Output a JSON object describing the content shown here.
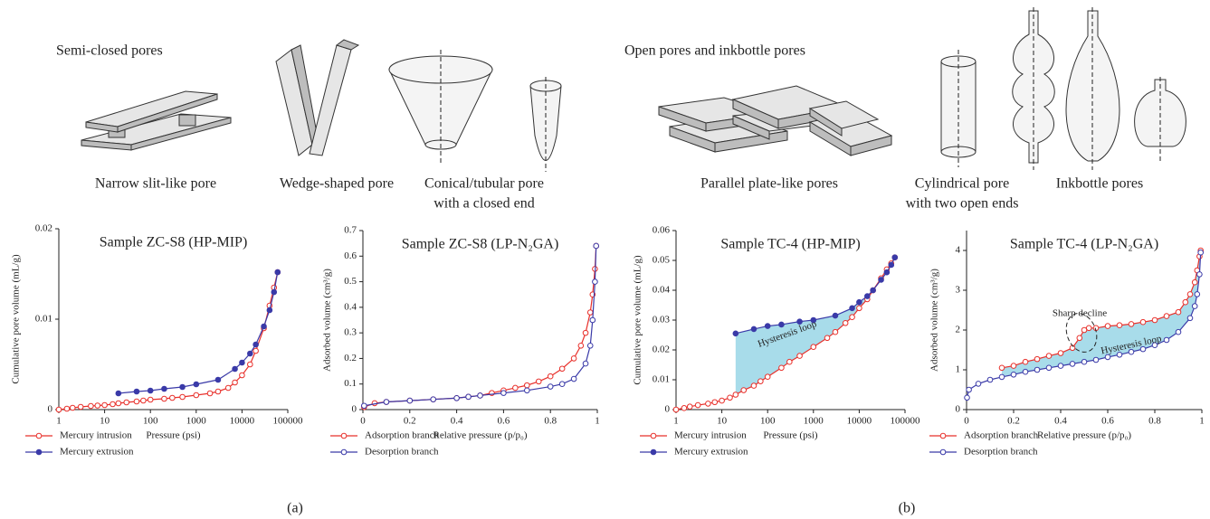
{
  "diagrams": {
    "left": {
      "title": "Semi-closed pores",
      "labels": [
        "Narrow slit-like pore",
        "Wedge-shaped pore",
        "Conical/tubular pore",
        "with a closed end"
      ]
    },
    "right": {
      "title": "Open pores and inkbottle pores",
      "labels": [
        "Parallel plate-like pores",
        "Cylindrical pore",
        "with two open ends",
        "Inkbottle pores"
      ]
    }
  },
  "panels": [
    "(a)",
    "(b)"
  ],
  "chart_data": [
    {
      "type": "line",
      "title": "Sample ZC-S8 (HP-MIP)",
      "x_label": "Pressure (psi)",
      "y_label": "Cumulative pore volume (mL/g)",
      "xscale": "log",
      "xlim": [
        1,
        100000
      ],
      "xticks": [
        1,
        10,
        100,
        1000,
        10000,
        100000
      ],
      "ylim": [
        0,
        0.02
      ],
      "yticks": [
        0,
        0.01,
        0.02
      ],
      "series": [
        {
          "name": "Mercury intrusion",
          "color": "#e8302b",
          "filled": false,
          "x": [
            1,
            1.5,
            2,
            3,
            5,
            7,
            10,
            15,
            20,
            30,
            50,
            70,
            100,
            200,
            300,
            500,
            1000,
            2000,
            3000,
            5000,
            7000,
            10000,
            15000,
            20000,
            30000,
            40000,
            50000,
            60000
          ],
          "values": [
            0,
            0.0001,
            0.0002,
            0.0003,
            0.0004,
            0.00045,
            0.0005,
            0.0006,
            0.0007,
            0.0008,
            0.0009,
            0.001,
            0.0011,
            0.0012,
            0.0013,
            0.0014,
            0.0016,
            0.0018,
            0.002,
            0.0024,
            0.003,
            0.0038,
            0.005,
            0.0065,
            0.009,
            0.0115,
            0.0135,
            0.0152
          ]
        },
        {
          "name": "Mercury extrusion",
          "color": "#3a3aa8",
          "filled": true,
          "x": [
            20,
            50,
            100,
            200,
            500,
            1000,
            3000,
            7000,
            10000,
            15000,
            20000,
            30000,
            40000,
            50000,
            60000
          ],
          "values": [
            0.0018,
            0.002,
            0.0021,
            0.0023,
            0.0025,
            0.0028,
            0.0033,
            0.0045,
            0.0052,
            0.0062,
            0.0072,
            0.0092,
            0.011,
            0.013,
            0.0152
          ]
        }
      ]
    },
    {
      "type": "line",
      "title": "Sample ZC-S8 (LP-N₂GA)",
      "x_label": "Relative pressure (p/p₀)",
      "y_label": "Adsorbed volume (cm³/g)",
      "xlim": [
        0,
        1
      ],
      "xticks": [
        0,
        0.2,
        0.4,
        0.6,
        0.8,
        1
      ],
      "ylim": [
        0,
        0.7
      ],
      "yticks": [
        0,
        0.1,
        0.2,
        0.3,
        0.4,
        0.5,
        0.6,
        0.7
      ],
      "series": [
        {
          "name": "Adsorption branch",
          "color": "#e8302b",
          "filled": false,
          "x": [
            0.005,
            0.05,
            0.1,
            0.2,
            0.3,
            0.4,
            0.45,
            0.5,
            0.55,
            0.6,
            0.65,
            0.7,
            0.75,
            0.8,
            0.85,
            0.9,
            0.93,
            0.95,
            0.97,
            0.98,
            0.99,
            0.995
          ],
          "values": [
            0.01,
            0.025,
            0.03,
            0.035,
            0.04,
            0.045,
            0.05,
            0.055,
            0.065,
            0.075,
            0.085,
            0.095,
            0.11,
            0.13,
            0.16,
            0.2,
            0.25,
            0.3,
            0.38,
            0.45,
            0.55,
            0.64
          ]
        },
        {
          "name": "Desorption branch",
          "color": "#3a3aa8",
          "filled": false,
          "x": [
            0.995,
            0.99,
            0.98,
            0.97,
            0.95,
            0.9,
            0.85,
            0.8,
            0.7,
            0.6,
            0.5,
            0.45,
            0.4,
            0.3,
            0.2,
            0.1,
            0.005
          ],
          "values": [
            0.64,
            0.5,
            0.35,
            0.25,
            0.18,
            0.12,
            0.1,
            0.09,
            0.075,
            0.065,
            0.055,
            0.05,
            0.045,
            0.04,
            0.035,
            0.03,
            0.015
          ]
        }
      ]
    },
    {
      "type": "line",
      "title": "Sample TC-4 (HP-MIP)",
      "x_label": "Pressure (psi)",
      "y_label": "Cumulative pore volume (mL/g)",
      "xscale": "log",
      "xlim": [
        1,
        100000
      ],
      "xticks": [
        1,
        10,
        100,
        1000,
        10000,
        100000
      ],
      "ylim": [
        0,
        0.06
      ],
      "yticks": [
        0,
        0.01,
        0.02,
        0.03,
        0.04,
        0.05,
        0.06
      ],
      "fill_between": true,
      "fill_color": "#a8dcea",
      "annotations": [
        "Hysteresis loop"
      ],
      "series": [
        {
          "name": "Mercury intrusion",
          "color": "#e8302b",
          "filled": false,
          "x": [
            1,
            1.5,
            2,
            3,
            5,
            7,
            10,
            15,
            20,
            30,
            50,
            70,
            100,
            200,
            300,
            500,
            1000,
            2000,
            3000,
            5000,
            7000,
            10000,
            15000,
            20000,
            30000,
            40000,
            50000,
            60000
          ],
          "values": [
            0,
            0.0005,
            0.001,
            0.0015,
            0.002,
            0.0025,
            0.003,
            0.004,
            0.005,
            0.0065,
            0.008,
            0.0095,
            0.011,
            0.014,
            0.016,
            0.018,
            0.021,
            0.024,
            0.026,
            0.029,
            0.031,
            0.034,
            0.037,
            0.04,
            0.044,
            0.047,
            0.049,
            0.051
          ]
        },
        {
          "name": "Mercury extrusion",
          "color": "#3a3aa8",
          "filled": true,
          "x": [
            20,
            50,
            100,
            200,
            500,
            1000,
            3000,
            7000,
            10000,
            15000,
            20000,
            30000,
            40000,
            50000,
            60000
          ],
          "values": [
            0.0255,
            0.027,
            0.028,
            0.0285,
            0.0295,
            0.03,
            0.0315,
            0.034,
            0.036,
            0.038,
            0.04,
            0.0435,
            0.046,
            0.0485,
            0.051
          ]
        }
      ]
    },
    {
      "type": "line",
      "title": "Sample TC-4 (LP-N₂GA)",
      "x_label": "Relative pressure (p/p₀)",
      "y_label": "Adsorbed volume (cm³/g)",
      "xlim": [
        0,
        1
      ],
      "xticks": [
        0,
        0.2,
        0.4,
        0.6,
        0.8,
        1
      ],
      "ylim": [
        0,
        4.5
      ],
      "yticks": [
        0,
        1,
        2,
        3,
        4
      ],
      "fill_between": true,
      "fill_color": "#a8dcea",
      "annotations": [
        "Sharp decline",
        "Hysteresis loop"
      ],
      "series": [
        {
          "name": "Adsorption branch",
          "color": "#e8302b",
          "filled": false,
          "x": [
            0.15,
            0.2,
            0.25,
            0.3,
            0.35,
            0.4,
            0.45,
            0.48,
            0.5,
            0.52,
            0.55,
            0.6,
            0.65,
            0.7,
            0.75,
            0.8,
            0.85,
            0.9,
            0.93,
            0.95,
            0.97,
            0.98,
            0.99,
            0.995
          ],
          "values": [
            1.05,
            1.1,
            1.2,
            1.27,
            1.35,
            1.42,
            1.55,
            1.8,
            2.0,
            2.05,
            2.05,
            2.1,
            2.12,
            2.15,
            2.2,
            2.25,
            2.35,
            2.45,
            2.7,
            2.9,
            3.2,
            3.5,
            3.85,
            4.0
          ]
        },
        {
          "name": "Desorption branch",
          "color": "#3a3aa8",
          "filled": false,
          "x": [
            0.995,
            0.99,
            0.98,
            0.97,
            0.95,
            0.9,
            0.85,
            0.8,
            0.75,
            0.7,
            0.65,
            0.6,
            0.55,
            0.5,
            0.45,
            0.4,
            0.35,
            0.3,
            0.25,
            0.2,
            0.15,
            0.1,
            0.05,
            0.01,
            0.002
          ],
          "values": [
            3.95,
            3.4,
            2.9,
            2.6,
            2.3,
            1.95,
            1.75,
            1.62,
            1.52,
            1.45,
            1.38,
            1.32,
            1.25,
            1.2,
            1.15,
            1.1,
            1.05,
            1.0,
            0.95,
            0.88,
            0.82,
            0.75,
            0.65,
            0.5,
            0.3
          ]
        }
      ]
    }
  ]
}
